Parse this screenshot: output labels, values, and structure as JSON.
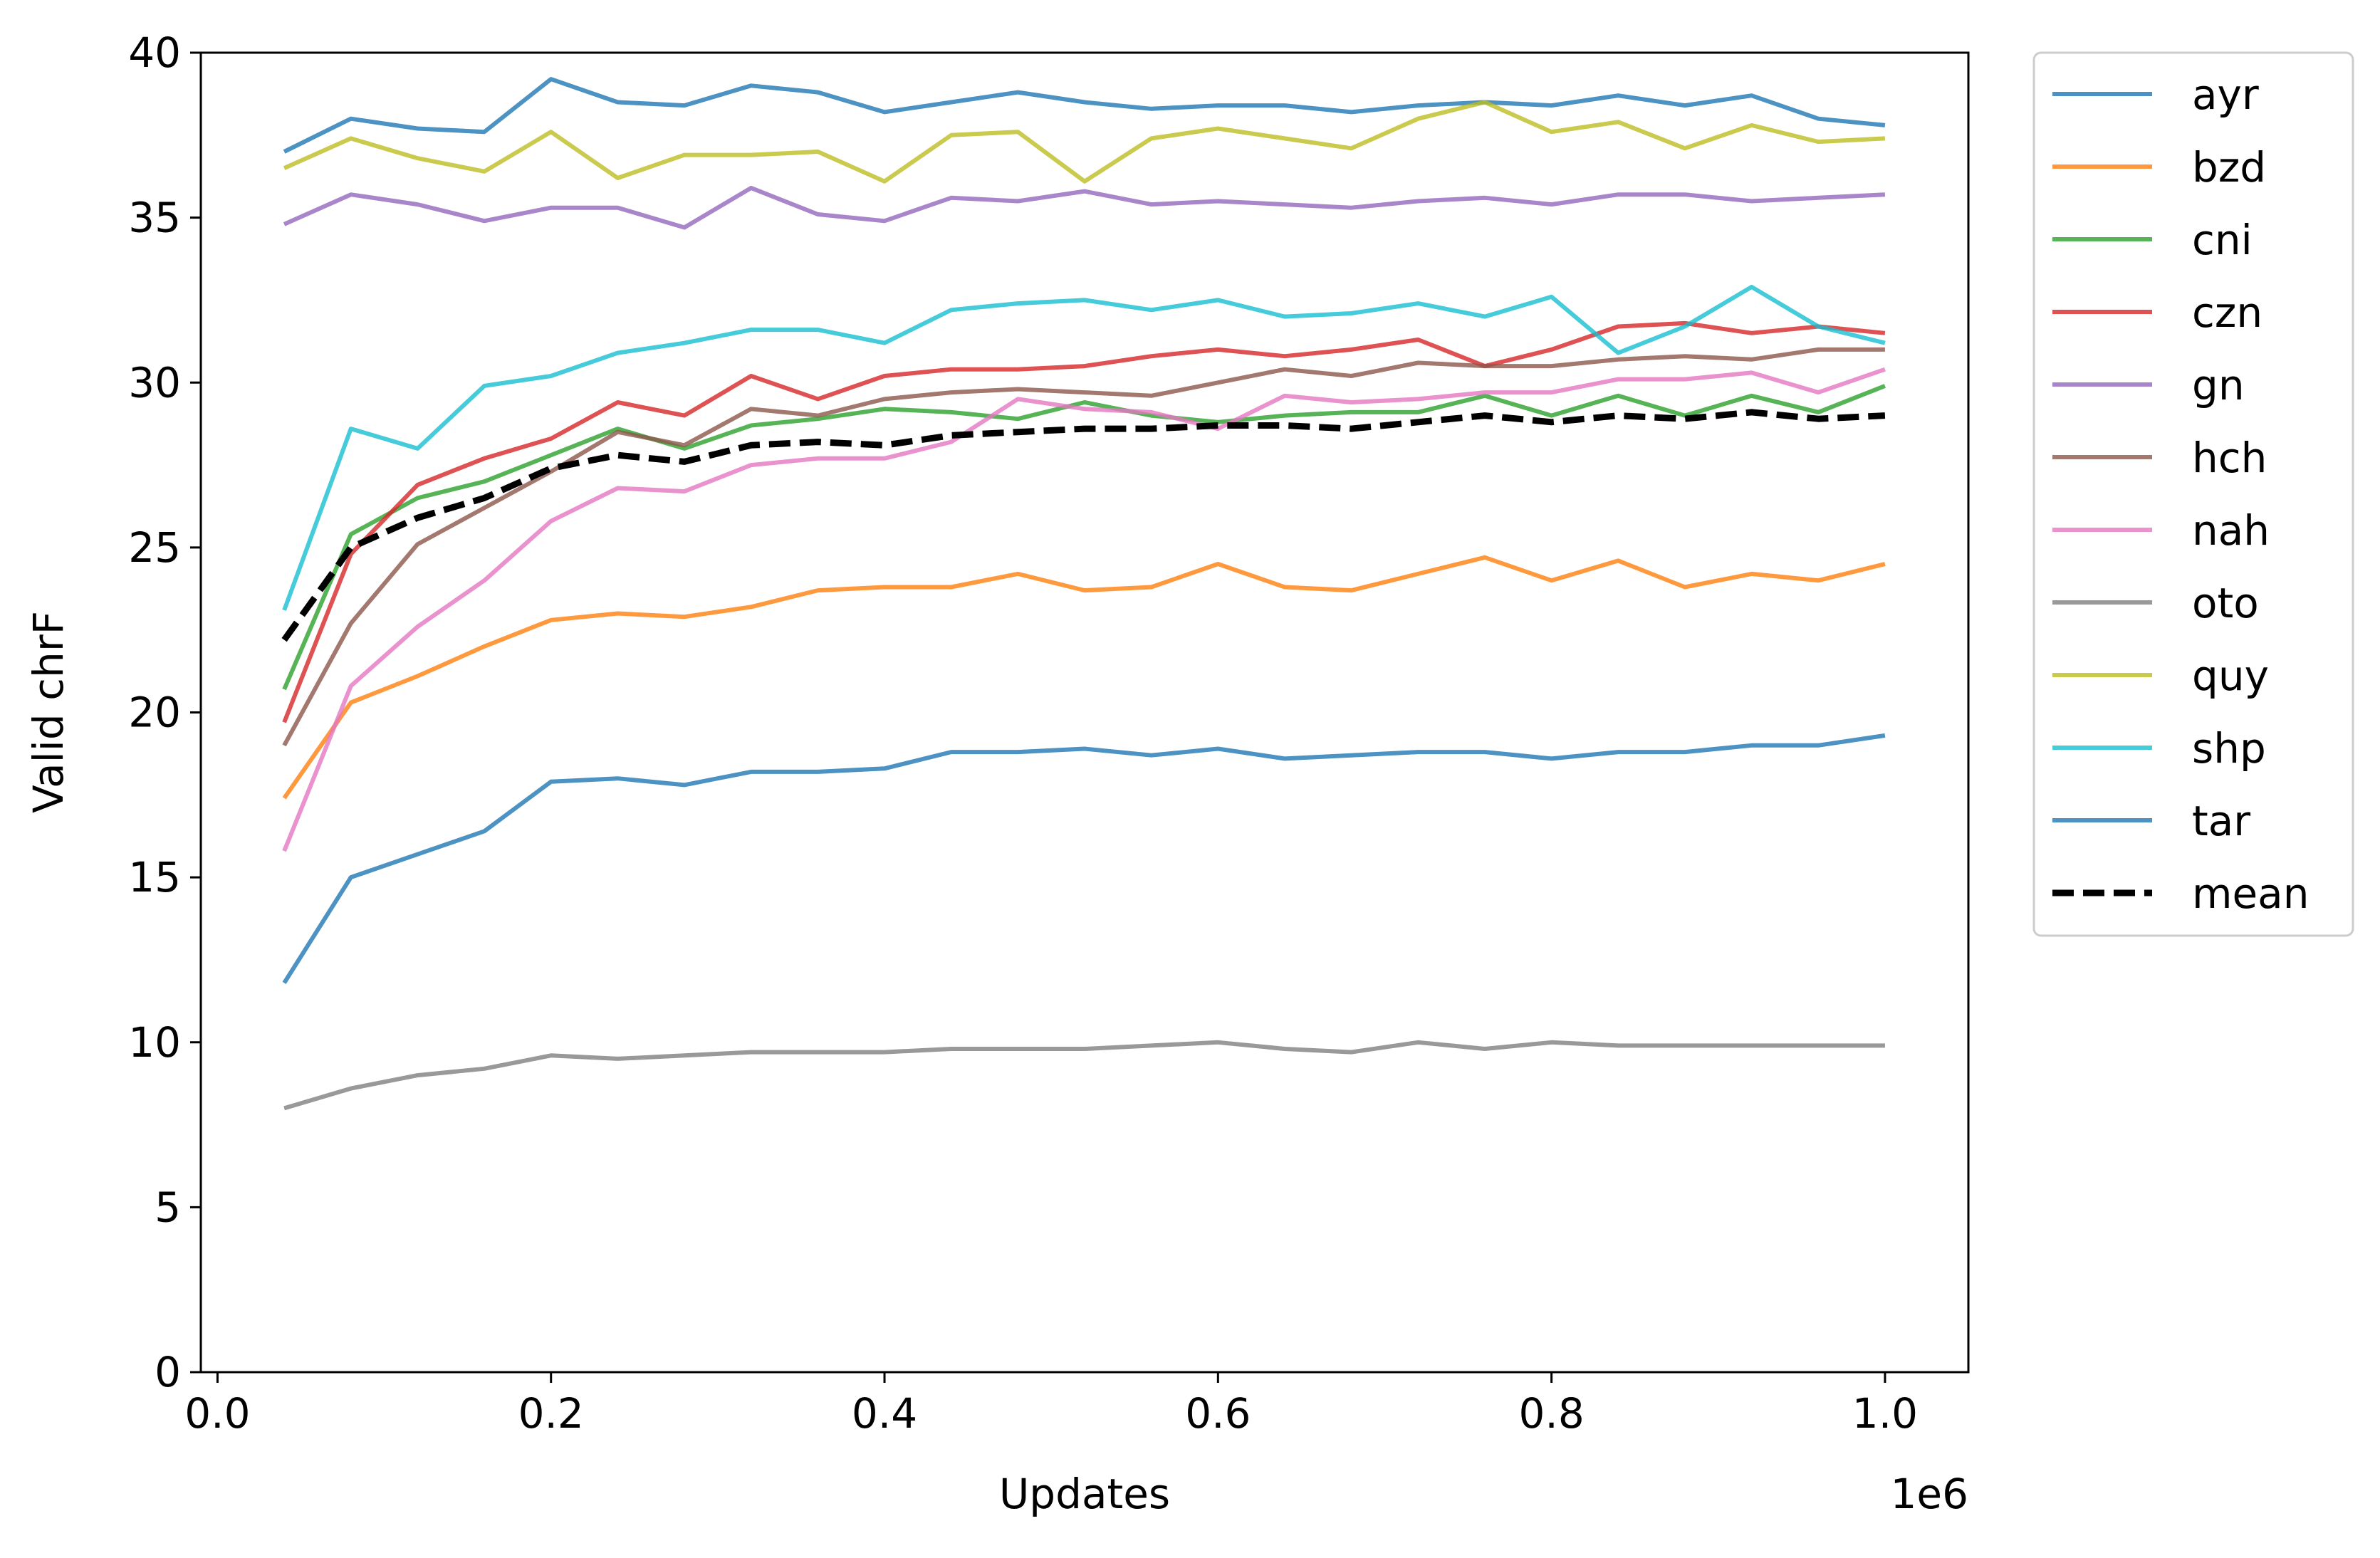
{
  "chart_data": {
    "type": "line",
    "title": "",
    "xlabel": "Updates",
    "ylabel": "Valid chrF",
    "x_offset_label": "1e6",
    "xlim": [
      -10000,
      1050000
    ],
    "ylim": [
      0,
      40
    ],
    "x_tick_values": [
      0,
      200000,
      400000,
      600000,
      800000,
      1000000
    ],
    "x_tick_labels": [
      "0.0",
      "0.2",
      "0.4",
      "0.6",
      "0.8",
      "1.0"
    ],
    "y_tick_values": [
      0,
      5,
      10,
      15,
      20,
      25,
      30,
      35,
      40
    ],
    "y_tick_labels": [
      "0",
      "5",
      "10",
      "15",
      "20",
      "25",
      "30",
      "35",
      "40"
    ],
    "grid": false,
    "legend_position": "outside-right-top",
    "x": [
      40000,
      80000,
      120000,
      160000,
      200000,
      240000,
      280000,
      320000,
      360000,
      400000,
      440000,
      480000,
      520000,
      560000,
      600000,
      640000,
      680000,
      720000,
      760000,
      800000,
      840000,
      880000,
      920000,
      960000,
      1000000
    ],
    "series": [
      {
        "name": "ayr",
        "color": "#1f77b4",
        "style": "solid",
        "values": [
          37.0,
          38.0,
          37.7,
          37.6,
          39.2,
          38.5,
          38.4,
          39.0,
          38.8,
          38.2,
          38.5,
          38.8,
          38.5,
          38.3,
          38.4,
          38.4,
          38.2,
          38.4,
          38.5,
          38.4,
          38.7,
          38.4,
          38.7,
          38.0,
          37.8
        ]
      },
      {
        "name": "bzd",
        "color": "#ff7f0e",
        "style": "solid",
        "values": [
          17.4,
          20.3,
          21.1,
          22.0,
          22.8,
          23.0,
          22.9,
          23.2,
          23.7,
          23.8,
          23.8,
          24.2,
          23.7,
          23.8,
          24.5,
          23.8,
          23.7,
          24.2,
          24.7,
          24.0,
          24.6,
          23.8,
          24.2,
          24.0,
          24.5
        ]
      },
      {
        "name": "cni",
        "color": "#2ca02c",
        "style": "solid",
        "values": [
          20.7,
          25.4,
          26.5,
          27.0,
          27.8,
          28.6,
          28.0,
          28.7,
          28.9,
          29.2,
          29.1,
          28.9,
          29.4,
          29.0,
          28.8,
          29.0,
          29.1,
          29.1,
          29.6,
          29.0,
          29.6,
          29.0,
          29.6,
          29.1,
          29.9
        ]
      },
      {
        "name": "czn",
        "color": "#d62728",
        "style": "solid",
        "values": [
          19.7,
          24.8,
          26.9,
          27.7,
          28.3,
          29.4,
          29.0,
          30.2,
          29.5,
          30.2,
          30.4,
          30.4,
          30.5,
          30.8,
          31.0,
          30.8,
          31.0,
          31.3,
          30.5,
          31.0,
          31.7,
          31.8,
          31.5,
          31.7,
          31.5
        ]
      },
      {
        "name": "gn",
        "color": "#9467bd",
        "style": "solid",
        "values": [
          34.8,
          35.7,
          35.4,
          34.9,
          35.3,
          35.3,
          34.7,
          35.9,
          35.1,
          34.9,
          35.6,
          35.5,
          35.8,
          35.4,
          35.5,
          35.4,
          35.3,
          35.5,
          35.6,
          35.4,
          35.7,
          35.7,
          35.5,
          35.6,
          35.7
        ]
      },
      {
        "name": "hch",
        "color": "#8c564b",
        "style": "solid",
        "values": [
          19.0,
          22.7,
          25.1,
          26.2,
          27.3,
          28.5,
          28.1,
          29.2,
          29.0,
          29.5,
          29.7,
          29.8,
          29.7,
          29.6,
          30.0,
          30.4,
          30.2,
          30.6,
          30.5,
          30.5,
          30.7,
          30.8,
          30.7,
          31.0,
          31.0
        ]
      },
      {
        "name": "nah",
        "color": "#e377c2",
        "style": "solid",
        "values": [
          15.8,
          20.8,
          22.6,
          24.0,
          25.8,
          26.8,
          26.7,
          27.5,
          27.7,
          27.7,
          28.2,
          29.5,
          29.2,
          29.1,
          28.6,
          29.6,
          29.4,
          29.5,
          29.7,
          29.7,
          30.1,
          30.1,
          30.3,
          29.7,
          30.4
        ]
      },
      {
        "name": "oto",
        "color": "#7f7f7f",
        "style": "solid",
        "values": [
          8.0,
          8.6,
          9.0,
          9.2,
          9.6,
          9.5,
          9.6,
          9.7,
          9.7,
          9.7,
          9.8,
          9.8,
          9.8,
          9.9,
          10.0,
          9.8,
          9.7,
          10.0,
          9.8,
          10.0,
          9.9,
          9.9,
          9.9,
          9.9,
          9.9
        ]
      },
      {
        "name": "quy",
        "color": "#bcbd22",
        "style": "solid",
        "values": [
          36.5,
          37.4,
          36.8,
          36.4,
          37.6,
          36.2,
          36.9,
          36.9,
          37.0,
          36.1,
          37.5,
          37.6,
          36.1,
          37.4,
          37.7,
          37.4,
          37.1,
          38.0,
          38.5,
          37.6,
          37.9,
          37.1,
          37.8,
          37.3,
          37.4
        ]
      },
      {
        "name": "shp",
        "color": "#17becf",
        "style": "solid",
        "values": [
          23.1,
          28.6,
          28.0,
          29.9,
          30.2,
          30.9,
          31.2,
          31.6,
          31.6,
          31.2,
          32.2,
          32.4,
          32.5,
          32.2,
          32.5,
          32.0,
          32.1,
          32.4,
          32.0,
          32.6,
          30.9,
          31.7,
          32.9,
          31.7,
          31.2
        ]
      },
      {
        "name": "tar",
        "color": "#1f77b4",
        "style": "solid",
        "values": [
          11.8,
          15.0,
          15.7,
          16.4,
          17.9,
          18.0,
          17.8,
          18.2,
          18.2,
          18.3,
          18.8,
          18.8,
          18.9,
          18.7,
          18.9,
          18.6,
          18.7,
          18.8,
          18.8,
          18.6,
          18.8,
          18.8,
          19.0,
          19.0,
          19.3
        ]
      },
      {
        "name": "mean",
        "color": "#000000",
        "style": "dashed",
        "values": [
          22.2,
          25.0,
          25.9,
          26.5,
          27.4,
          27.8,
          27.6,
          28.1,
          28.2,
          28.1,
          28.4,
          28.5,
          28.6,
          28.6,
          28.7,
          28.7,
          28.6,
          28.8,
          29.0,
          28.8,
          29.0,
          28.9,
          29.1,
          28.9,
          29.0
        ]
      }
    ]
  }
}
